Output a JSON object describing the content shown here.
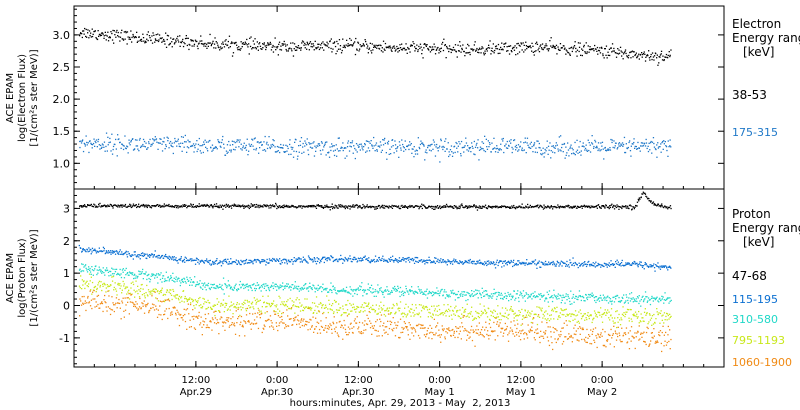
{
  "chart_data": [
    {
      "type": "scatter",
      "panel": "electron",
      "ylabel_lines": [
        "ACE EPAM",
        "log(Electron Flux)",
        "[1/(cm²s ster MeV)]"
      ],
      "ylim": [
        0.6,
        3.45
      ],
      "yticks": [
        "1.0",
        "1.5",
        "2.0",
        "2.5",
        "3.0"
      ],
      "legend_title": [
        "Electron",
        "Energy ranges",
        "[keV]"
      ],
      "series": [
        {
          "name": "38-53",
          "color": "#000000",
          "trend": [
            [
              -0.2,
              3.05
            ],
            [
              0.2,
              2.95
            ],
            [
              0.6,
              2.87
            ],
            [
              1.0,
              2.82
            ],
            [
              1.4,
              2.84
            ],
            [
              1.8,
              2.8
            ],
            [
              2.2,
              2.78
            ],
            [
              2.6,
              2.82
            ],
            [
              3.0,
              2.76
            ],
            [
              3.3,
              2.68
            ],
            [
              3.4,
              2.68
            ]
          ],
          "noise": 0.05
        },
        {
          "name": "175-315",
          "color": "#1f78c8",
          "trend": [
            [
              -0.2,
              1.32
            ],
            [
              0.6,
              1.28
            ],
            [
              1.4,
              1.25
            ],
            [
              2.2,
              1.27
            ],
            [
              3.0,
              1.25
            ],
            [
              3.4,
              1.28
            ]
          ],
          "noise": 0.07
        }
      ]
    },
    {
      "type": "scatter",
      "panel": "proton",
      "ylabel_lines": [
        "ACE EPAM",
        "log(Proton Flux)",
        "[1/(cm²s ster MeV)]"
      ],
      "ylim": [
        -1.9,
        3.6
      ],
      "yticks": [
        "-1",
        "0",
        "1",
        "2",
        "3"
      ],
      "legend_title": [
        "Proton",
        "Energy ranges",
        "[keV]"
      ],
      "series": [
        {
          "name": "47-68",
          "color": "#000000",
          "trend": [
            [
              -0.2,
              3.1
            ],
            [
              1.0,
              3.08
            ],
            [
              2.2,
              3.07
            ],
            [
              3.2,
              3.07
            ],
            [
              3.25,
              3.5
            ],
            [
              3.3,
              3.2
            ],
            [
              3.4,
              3.05
            ]
          ],
          "noise": 0.03
        },
        {
          "name": "115-195",
          "color": "#0a6fd1",
          "trend": [
            [
              -0.2,
              1.75
            ],
            [
              0.3,
              1.5
            ],
            [
              0.6,
              1.35
            ],
            [
              1.0,
              1.4
            ],
            [
              1.4,
              1.45
            ],
            [
              1.8,
              1.42
            ],
            [
              2.2,
              1.35
            ],
            [
              2.6,
              1.32
            ],
            [
              3.0,
              1.28
            ],
            [
              3.2,
              1.3
            ],
            [
              3.4,
              1.2
            ]
          ],
          "noise": 0.05
        },
        {
          "name": "310-580",
          "color": "#20d8c8",
          "trend": [
            [
              -0.2,
              1.15
            ],
            [
              0.3,
              0.9
            ],
            [
              0.6,
              0.6
            ],
            [
              1.0,
              0.6
            ],
            [
              1.4,
              0.5
            ],
            [
              1.8,
              0.45
            ],
            [
              2.2,
              0.35
            ],
            [
              2.6,
              0.3
            ],
            [
              3.0,
              0.25
            ],
            [
              3.4,
              0.2
            ]
          ],
          "noise": 0.08
        },
        {
          "name": "795-1193",
          "color": "#c8e81a",
          "trend": [
            [
              -0.2,
              0.7
            ],
            [
              0.3,
              0.4
            ],
            [
              0.6,
              0.0
            ],
            [
              1.0,
              0.05
            ],
            [
              1.4,
              -0.05
            ],
            [
              1.8,
              -0.15
            ],
            [
              2.2,
              -0.2
            ],
            [
              2.6,
              -0.25
            ],
            [
              3.0,
              -0.3
            ],
            [
              3.4,
              -0.35
            ]
          ],
          "noise": 0.12
        },
        {
          "name": "1060-1900",
          "color": "#f08a14",
          "trend": [
            [
              -0.2,
              0.15
            ],
            [
              0.3,
              -0.1
            ],
            [
              0.6,
              -0.5
            ],
            [
              1.0,
              -0.45
            ],
            [
              1.4,
              -0.6
            ],
            [
              1.8,
              -0.7
            ],
            [
              2.2,
              -0.75
            ],
            [
              2.6,
              -0.8
            ],
            [
              3.0,
              -0.95
            ],
            [
              3.4,
              -1.0
            ]
          ],
          "noise": 0.18
        }
      ]
    }
  ],
  "x_axis": {
    "ticks": [
      {
        "x": 0.5,
        "line1": "12:00",
        "line2": "Apr.29"
      },
      {
        "x": 1.0,
        "line1": "0:00",
        "line2": "Apr.30"
      },
      {
        "x": 1.5,
        "line1": "12:00",
        "line2": "Apr.30"
      },
      {
        "x": 2.0,
        "line1": "0:00",
        "line2": "May 1"
      },
      {
        "x": 2.5,
        "line1": "12:00",
        "line2": "May 1"
      },
      {
        "x": 3.0,
        "line1": "0:00",
        "line2": "May 2"
      }
    ],
    "xlim": [
      -0.25,
      3.75
    ],
    "xlabel": "hours:minutes, Apr. 29, 2013 - May  2, 2013"
  }
}
